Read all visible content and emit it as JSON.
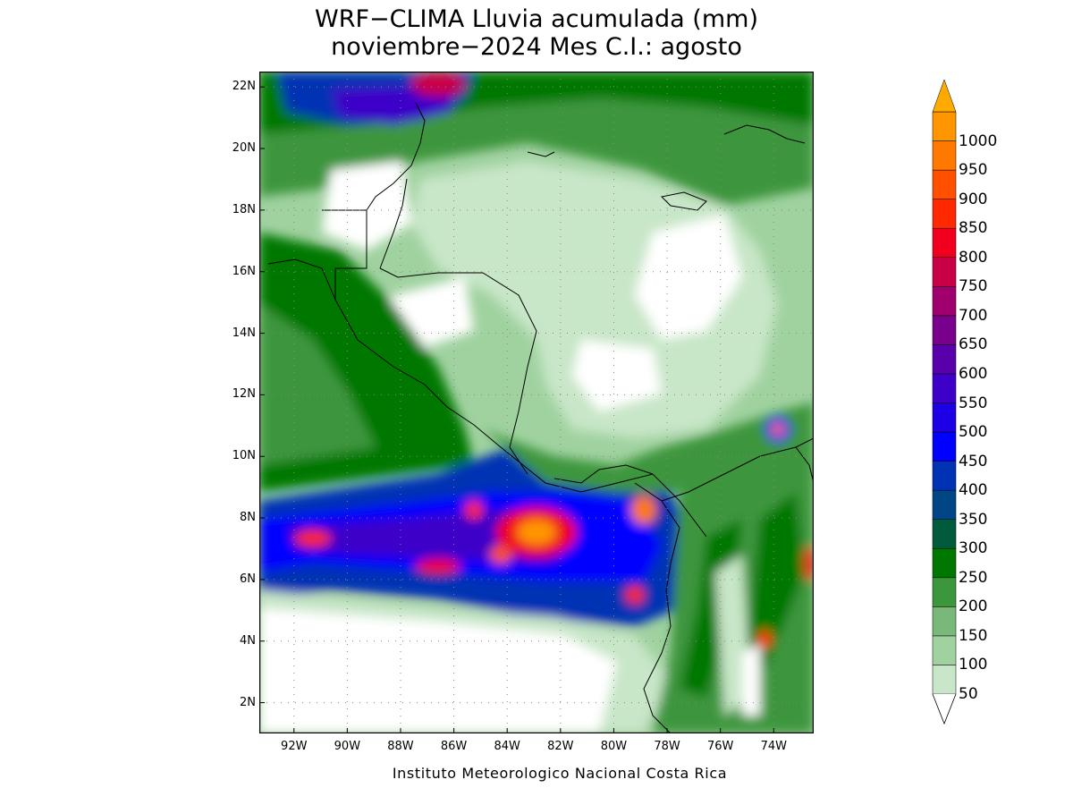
{
  "title": {
    "line1": "WRF−CLIMA Lluvia acumulada (mm)",
    "line2": "noviembre−2024 Mes C.I.: agosto"
  },
  "credit": "Instituto Meteorologico Nacional Costa Rica",
  "map": {
    "lon_range": [
      -93.3,
      -72.5
    ],
    "lat_range": [
      1.0,
      22.5
    ],
    "lat_ticks": [
      {
        "value": 22,
        "label": "22N"
      },
      {
        "value": 20,
        "label": "20N"
      },
      {
        "value": 18,
        "label": "18N"
      },
      {
        "value": 16,
        "label": "16N"
      },
      {
        "value": 14,
        "label": "14N"
      },
      {
        "value": 12,
        "label": "12N"
      },
      {
        "value": 10,
        "label": "10N"
      },
      {
        "value": 8,
        "label": "8N"
      },
      {
        "value": 6,
        "label": "6N"
      },
      {
        "value": 4,
        "label": "4N"
      },
      {
        "value": 2,
        "label": "2N"
      }
    ],
    "lon_ticks": [
      {
        "value": -92,
        "label": "92W"
      },
      {
        "value": -90,
        "label": "90W"
      },
      {
        "value": -88,
        "label": "88W"
      },
      {
        "value": -86,
        "label": "86W"
      },
      {
        "value": -84,
        "label": "84W"
      },
      {
        "value": -82,
        "label": "82W"
      },
      {
        "value": -80,
        "label": "80W"
      },
      {
        "value": -78,
        "label": "78W"
      },
      {
        "value": -76,
        "label": "76W"
      },
      {
        "value": -74,
        "label": "74W"
      }
    ]
  },
  "colorbar": {
    "levels": [
      {
        "label": "50",
        "color": "#c8e6c8"
      },
      {
        "label": "100",
        "color": "#a0d2a0"
      },
      {
        "label": "150",
        "color": "#78b878"
      },
      {
        "label": "200",
        "color": "#3c963c"
      },
      {
        "label": "250",
        "color": "#007800"
      },
      {
        "label": "300",
        "color": "#005a3c"
      },
      {
        "label": "350",
        "color": "#004687"
      },
      {
        "label": "400",
        "color": "#0032b4"
      },
      {
        "label": "450",
        "color": "#0000ff"
      },
      {
        "label": "500",
        "color": "#1e00e6"
      },
      {
        "label": "550",
        "color": "#3c00c8"
      },
      {
        "label": "600",
        "color": "#5a00aa"
      },
      {
        "label": "650",
        "color": "#78008c"
      },
      {
        "label": "700",
        "color": "#a0006e"
      },
      {
        "label": "750",
        "color": "#c80046"
      },
      {
        "label": "800",
        "color": "#f0001e"
      },
      {
        "label": "850",
        "color": "#ff2800"
      },
      {
        "label": "900",
        "color": "#ff5000"
      },
      {
        "label": "950",
        "color": "#ff7800"
      },
      {
        "label": "1000",
        "color": "#ff9600"
      }
    ],
    "over_color": "#ffaa00"
  }
}
